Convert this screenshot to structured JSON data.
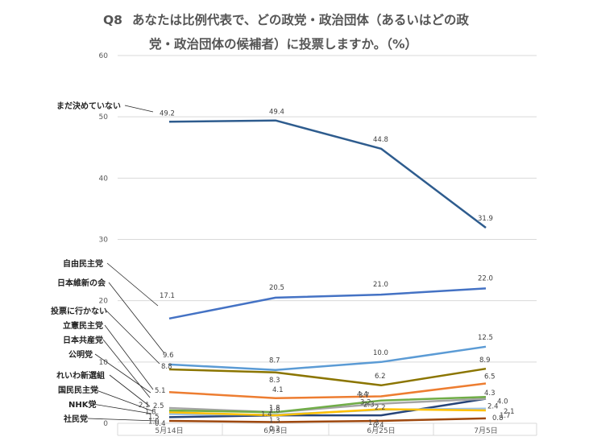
{
  "chart_data": {
    "type": "line",
    "title_prefix": "Q8",
    "title_line1": "あなたは比例代表で、どの政党・政治団体（あるいはどの政",
    "title_line2": "党・政治団体の候補者）に投票しますか。（%）",
    "categories": [
      "5月14日",
      "6月3日",
      "6月25日",
      "7月5日"
    ],
    "ylim": [
      0,
      60
    ],
    "yticks": [
      "0",
      "10",
      "20",
      "30",
      "40",
      "50",
      "60"
    ],
    "series": [
      {
        "name": "まだ決めていない",
        "color": "#2e5c8e",
        "values": [
          49.2,
          49.4,
          44.8,
          31.9
        ],
        "labels": [
          "49.2",
          "49.4",
          "44.8",
          "31.9"
        ]
      },
      {
        "name": "自由民主党",
        "color": "#4472c4",
        "values": [
          17.1,
          20.5,
          21.0,
          22.0
        ],
        "labels": [
          "17.1",
          "20.5",
          "21.0",
          "22.0"
        ]
      },
      {
        "name": "日本維新の会",
        "color": "#5b9bd5",
        "values": [
          9.6,
          8.7,
          10.0,
          12.5
        ],
        "labels": [
          "9.6",
          "8.7",
          "10.0",
          "12.5"
        ]
      },
      {
        "name": "投票に行かない",
        "color": "#8b7500",
        "values": [
          8.8,
          8.3,
          6.2,
          8.9
        ],
        "labels": [
          "8.8",
          "8.3",
          "6.2",
          "8.9"
        ]
      },
      {
        "name": "立憲民主党",
        "color": "#ed7d31",
        "values": [
          5.1,
          4.1,
          4.4,
          6.5
        ],
        "labels": [
          "5.1",
          "4.1",
          "4.4",
          "6.5"
        ]
      },
      {
        "name": "日本共産党",
        "color": "#70ad47",
        "values": [
          2.1,
          1.8,
          3.7,
          4.3
        ],
        "labels": [
          "2.1",
          "1.8",
          "3.7",
          "4.3"
        ]
      },
      {
        "name": "公明党",
        "color": "#a5a5a5",
        "values": [
          2.5,
          1.8,
          3.2,
          4.0
        ],
        "labels": [
          "2.5",
          "1.8",
          "3.2",
          "4.0"
        ]
      },
      {
        "name": "れいわ新選組",
        "color": "#ffc000",
        "values": [
          1.8,
          1.3,
          2.3,
          2.1
        ],
        "labels": [
          "1.8",
          "1.3",
          "2.3",
          "2.1"
        ]
      },
      {
        "name": "国民民主党",
        "color": "#9dc3e6",
        "values": [
          1.5,
          1.4,
          2.2,
          2.4
        ],
        "labels": [
          "1.5",
          "1.4",
          "2.2",
          "2.4"
        ]
      },
      {
        "name": "NHK党",
        "color": "#264478",
        "values": [
          1.0,
          1.3,
          1.3,
          4.0
        ],
        "labels": [
          "1.0",
          "",
          "1.3",
          ""
        ]
      },
      {
        "name": "社民党",
        "color": "#9e480e",
        "values": [
          0.4,
          0.2,
          0.4,
          0.8
        ],
        "labels": [
          "0.4",
          "0.2",
          "0.4",
          "0.8"
        ]
      }
    ],
    "extra_labels": [
      "1.7"
    ],
    "legend_placement": "left-callouts"
  }
}
